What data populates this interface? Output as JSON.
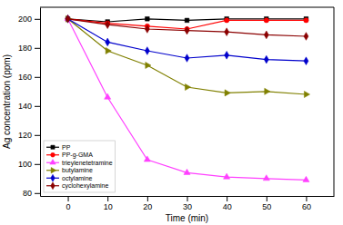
{
  "chart_data": {
    "type": "line",
    "xlabel": "Time (min)",
    "ylabel": "Ag concentration (ppm)",
    "x": [
      0,
      10,
      20,
      30,
      40,
      50,
      60
    ],
    "xlim": [
      -7,
      67
    ],
    "ylim": [
      78,
      208
    ],
    "xticks": [
      0,
      10,
      20,
      30,
      40,
      50,
      60
    ],
    "yticks": [
      80,
      100,
      120,
      140,
      160,
      180,
      200
    ],
    "legend": "lower-left",
    "series": [
      {
        "name": "PP",
        "color": "#000000",
        "marker": "square",
        "values": [
          200,
          198,
          200,
          199,
          200,
          200,
          200
        ]
      },
      {
        "name": "PP-g-GMA",
        "color": "#ff0000",
        "marker": "circle",
        "values": [
          200,
          197,
          195,
          193,
          199,
          199,
          199
        ]
      },
      {
        "name": "trieylenetetramine",
        "color": "#ff40ff",
        "marker": "triangle-up",
        "values": [
          200,
          146,
          103,
          94,
          91,
          90,
          89
        ]
      },
      {
        "name": "butylamine",
        "color": "#808000",
        "marker": "triangle-right",
        "values": [
          200,
          178,
          168,
          153,
          149,
          150,
          148
        ]
      },
      {
        "name": "octylamine",
        "color": "#0000cc",
        "marker": "diamond",
        "values": [
          200,
          184,
          178,
          173,
          175,
          172,
          171
        ]
      },
      {
        "name": "cyclohexylamine",
        "color": "#8b0000",
        "marker": "diamond",
        "values": [
          200,
          196,
          193,
          192,
          191,
          189,
          188
        ]
      }
    ]
  }
}
